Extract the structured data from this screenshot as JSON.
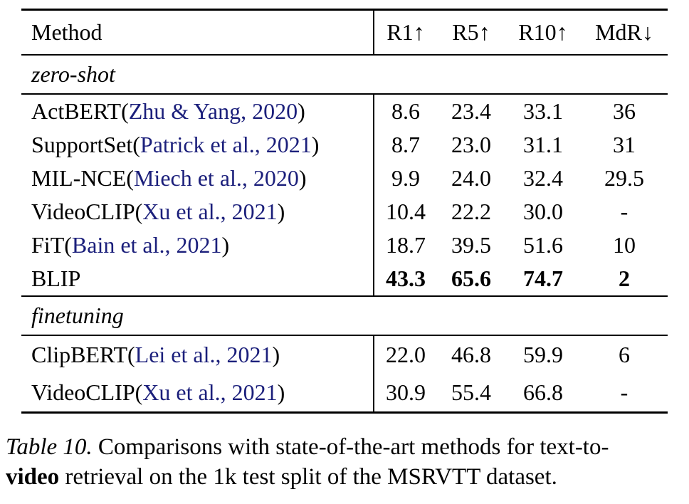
{
  "table": {
    "header": {
      "method": "Method",
      "cols": [
        "R1↑",
        "R5↑",
        "R10↑",
        "MdR↓"
      ]
    },
    "sections": [
      {
        "label": "zero-shot",
        "rows": [
          {
            "method": "ActBERT",
            "citation": "Zhu & Yang, 2020",
            "values": [
              "8.6",
              "23.4",
              "33.1",
              "36"
            ],
            "bold": false
          },
          {
            "method": "SupportSet",
            "citation": "Patrick et al., 2021",
            "values": [
              "8.7",
              "23.0",
              "31.1",
              "31"
            ],
            "bold": false
          },
          {
            "method": "MIL-NCE",
            "citation": "Miech et al., 2020",
            "values": [
              "9.9",
              "24.0",
              "32.4",
              "29.5"
            ],
            "bold": false
          },
          {
            "method": "VideoCLIP",
            "citation": "Xu et al., 2021",
            "values": [
              "10.4",
              "22.2",
              "30.0",
              "-"
            ],
            "bold": false
          },
          {
            "method": "FiT",
            "citation": "Bain et al., 2021",
            "values": [
              "18.7",
              "39.5",
              "51.6",
              "10"
            ],
            "bold": false
          },
          {
            "method": "BLIP",
            "citation": null,
            "values": [
              "43.3",
              "65.6",
              "74.7",
              "2"
            ],
            "bold": true
          }
        ]
      },
      {
        "label": "finetuning",
        "rows": [
          {
            "method": "ClipBERT",
            "citation": "Lei et al., 2021",
            "values": [
              "22.0",
              "46.8",
              "59.9",
              "6"
            ],
            "bold": false
          },
          {
            "method": "VideoCLIP",
            "citation": "Xu et al., 2021",
            "values": [
              "30.9",
              "55.4",
              "66.8",
              "-"
            ],
            "bold": false
          }
        ]
      }
    ]
  },
  "caption": {
    "lines": [
      [
        {
          "text": "Table 10.",
          "style": "italic"
        },
        {
          "text": " Comparisons with state-of-the-art methods for text-to-",
          "style": "normal"
        }
      ],
      [
        {
          "text": "video",
          "style": "bold"
        },
        {
          "text": " retrieval on the 1k test split of the MSRVTT dataset.",
          "style": "normal"
        }
      ]
    ]
  },
  "colors": {
    "text": "#000000",
    "citation": "#1b1f7b",
    "background": "#ffffff"
  }
}
